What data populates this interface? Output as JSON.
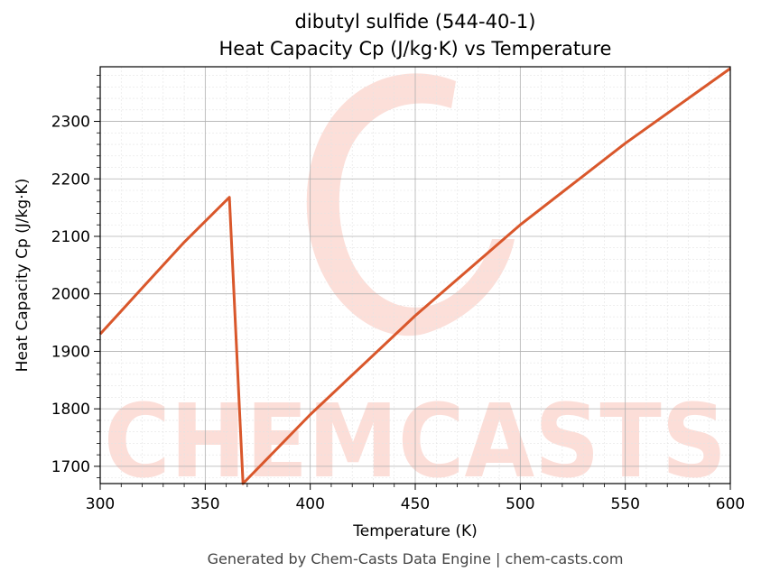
{
  "colors": {
    "line": "#d9572b",
    "watermark": "#fcd9d2",
    "grid_major": "#b0b0b0",
    "grid_minor": "#e3e3e3"
  },
  "footer": "Generated by Chem-Casts Data Engine | chem-casts.com",
  "watermark": {
    "text": "CHEMCASTS"
  },
  "chart_data": {
    "type": "line",
    "title": "dibutyl sulfide (544-40-1)",
    "subtitle": "Heat Capacity Cp (J/kg·K) vs Temperature",
    "xlabel": "Temperature (K)",
    "ylabel": "Heat Capacity Cp (J/kg·K)",
    "xlim": [
      300,
      600
    ],
    "ylim": [
      1670,
      2395
    ],
    "x_ticks": [
      300,
      350,
      400,
      450,
      500,
      550,
      600
    ],
    "y_ticks": [
      1700,
      1800,
      1900,
      2000,
      2100,
      2200,
      2300
    ],
    "grid": true,
    "minor_grid": true,
    "series": [
      {
        "x": [
          300,
          320,
          340,
          361.5,
          368,
          400,
          450,
          500,
          550,
          600
        ],
        "y": [
          1930,
          2010,
          2090,
          2168,
          1670,
          1790,
          1962,
          2120,
          2262,
          2392
        ]
      }
    ]
  }
}
